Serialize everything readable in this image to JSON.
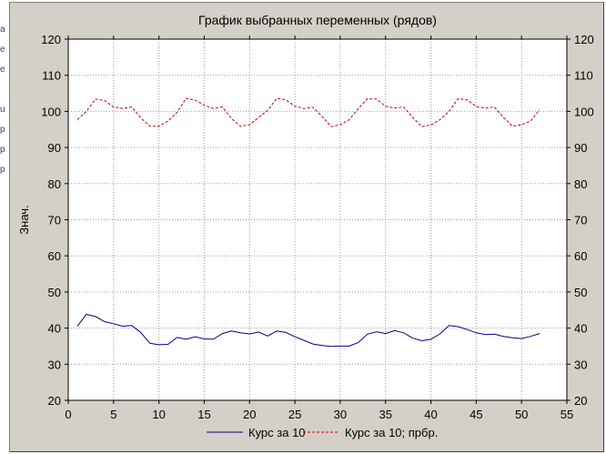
{
  "left_strip_glyphs": [
    "a",
    "e",
    "e",
    "u",
    "p",
    "p",
    "p"
  ],
  "chart_data": {
    "type": "line",
    "title": "График выбранных переменных (рядов)",
    "xlabel": "",
    "ylabel": "Знач.",
    "xlim": [
      0,
      55
    ],
    "ylim": [
      20,
      120
    ],
    "x_ticks": [
      0,
      5,
      10,
      15,
      20,
      25,
      30,
      35,
      40,
      45,
      50,
      55
    ],
    "y_ticks": [
      20,
      30,
      40,
      50,
      60,
      70,
      80,
      90,
      100,
      110,
      120
    ],
    "grid": true,
    "legend_position": "bottom",
    "x": [
      1,
      2,
      3,
      4,
      5,
      6,
      7,
      8,
      9,
      10,
      11,
      12,
      13,
      14,
      15,
      16,
      17,
      18,
      19,
      20,
      21,
      22,
      23,
      24,
      25,
      26,
      27,
      28,
      29,
      30,
      31,
      32,
      33,
      34,
      35,
      36,
      37,
      38,
      39,
      40,
      41,
      42,
      43,
      44,
      45,
      46,
      47,
      48,
      49,
      50,
      51,
      52
    ],
    "series": [
      {
        "name": "Курс за 10",
        "color": "#00008b",
        "dash": "solid",
        "values": [
          40.5,
          43.8,
          43.2,
          41.8,
          41.2,
          40.5,
          40.7,
          38.8,
          35.8,
          35.4,
          35.5,
          37.4,
          36.9,
          37.6,
          37.0,
          36.9,
          38.5,
          39.2,
          38.7,
          38.4,
          38.9,
          37.8,
          39.2,
          38.8,
          37.6,
          36.6,
          35.6,
          35.2,
          34.9,
          35.0,
          35.0,
          36.0,
          38.3,
          39.0,
          38.5,
          39.3,
          38.7,
          37.2,
          36.5,
          36.9,
          38.4,
          40.7,
          40.4,
          39.6,
          38.7,
          38.2,
          38.3,
          37.7,
          37.3,
          37.1,
          37.7,
          38.5
        ]
      },
      {
        "name": "Курс за 10; прбр.",
        "color": "#cc0000",
        "dash": "dashed",
        "values": [
          97.7,
          100.0,
          103.4,
          103.0,
          101.2,
          100.8,
          101.2,
          98.2,
          95.9,
          95.9,
          97.3,
          99.7,
          103.6,
          103.1,
          101.7,
          100.8,
          101.2,
          98.0,
          95.9,
          96.3,
          98.3,
          100.3,
          103.6,
          103.2,
          101.4,
          100.8,
          101.1,
          98.6,
          95.8,
          96.3,
          97.7,
          100.8,
          103.5,
          103.4,
          101.4,
          100.9,
          101.2,
          98.3,
          95.8,
          96.2,
          97.7,
          100.0,
          103.5,
          103.2,
          101.3,
          100.9,
          101.2,
          98.3,
          95.9,
          96.3,
          97.3,
          100.5
        ]
      }
    ]
  }
}
